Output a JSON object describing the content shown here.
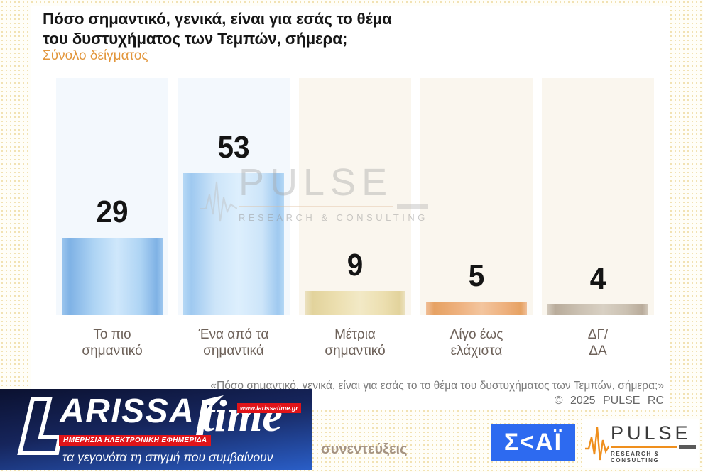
{
  "header": {
    "title_line1": "Πόσο σημαντικό, γενικά, είναι για εσάς το θέμα",
    "title_line2": "του δυστυχήματος των Τεμπών, σήμερα;",
    "subtitle": "Σύνολο δείγματος",
    "subtitle_color": "#e2963c"
  },
  "chart_data": {
    "type": "bar",
    "title": "Πόσο σημαντικό, γενικά, είναι για εσάς το θέμα του δυστυχήματος των Τεμπών, σήμερα;",
    "subtitle": "Σύνολο δείγματος",
    "categories": [
      "Το πιο σημαντικό",
      "Ένα από τα σημαντικά",
      "Μέτρια σημαντικό",
      "Λίγο έως ελάχιστα",
      "ΔΓ/ΔΑ"
    ],
    "values": [
      29,
      53,
      9,
      5,
      4
    ],
    "ylabel": "",
    "xlabel": "",
    "ylim": [
      0,
      88
    ],
    "grid": false,
    "legend": false,
    "value_labels_shown": true,
    "items": [
      {
        "label_line1": "Το πιο",
        "label_line2": "σημαντικό",
        "value": 29,
        "col_bg": "#f3f8fd",
        "edge": "#9cc6ee",
        "dark": "#7fb2e5",
        "mid": "#aed4f4",
        "light": "#cfe7fb"
      },
      {
        "label_line1": "Ένα από τα",
        "label_line2": "σημαντικά",
        "value": 53,
        "col_bg": "#f3f8fd",
        "edge": "#b5d8f5",
        "dark": "#9fc9f0",
        "mid": "#cde5f9",
        "light": "#ddeffd"
      },
      {
        "label_line1": "Μέτρια",
        "label_line2": "σημαντικό",
        "value": 9,
        "col_bg": "#faf6ee",
        "edge": "#ece2c2",
        "dark": "#e2d39c",
        "mid": "#ecdfb0",
        "light": "#f2e9c6"
      },
      {
        "label_line1": "Λίγο έως",
        "label_line2": "ελάχιστα",
        "value": 5,
        "col_bg": "#faf6ee",
        "edge": "#f0bf98",
        "dark": "#e6a263",
        "mid": "#eeb17e",
        "light": "#f3c59e"
      },
      {
        "label_line1": "ΔΓ/",
        "label_line2": "ΔΑ",
        "value": 4,
        "col_bg": "#faf6ee",
        "edge": "#d2c9bc",
        "dark": "#b9ac9b",
        "mid": "#cbc1b2",
        "light": "#d8d0c3"
      }
    ]
  },
  "watermark": {
    "brand": "PULSE",
    "tagline": "RESEARCH & CONSULTING"
  },
  "footnote": {
    "quote": "«Πόσο σημαντικό, γενικά, είναι για εσάς το το θέμα του δυστυχήματος των Τεμπών, σήμερα;»",
    "copyright": "© 2025 PULSE RC"
  },
  "footer": {
    "methodology_fragment": "συνεντεύξεις",
    "skai_logo_text": "Σ<ΑΪ",
    "pulse_brand": "PULSE",
    "pulse_tagline": "RESEARCH & CONSULTING"
  },
  "larissatime": {
    "name_part1": "ARISSA",
    "name_part2": "time",
    "url_badge": "www.larissatime.gr",
    "red_strip": "ΗΜΕΡΗΣΙΑ ΗΛΕΚΤΡΟΝΙΚΗ ΕΦΗΜΕΡΙΔΑ",
    "tagline": "τα γεγονότα τη στιγμή που συμβαίνουν",
    "accent_red": "#e01419",
    "banner_blue": "#2a5ec7"
  }
}
